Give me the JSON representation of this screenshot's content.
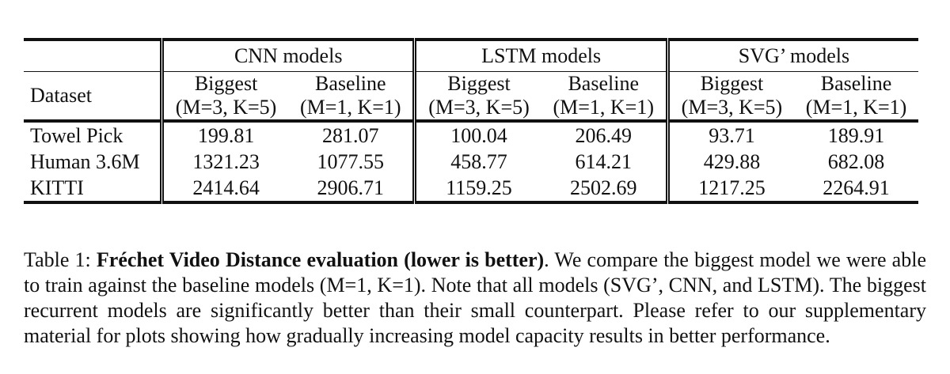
{
  "table": {
    "dataset_header": "Dataset",
    "groups": [
      "CNN models",
      "LSTM models",
      "SVG’ models"
    ],
    "subheaders": [
      {
        "name": "Biggest",
        "config": "(M=3, K=5)"
      },
      {
        "name": "Baseline",
        "config": "(M=1, K=1)"
      },
      {
        "name": "Biggest",
        "config": "(M=3, K=5)"
      },
      {
        "name": "Baseline",
        "config": "(M=1, K=1)"
      },
      {
        "name": "Biggest",
        "config": "(M=3, K=5)"
      },
      {
        "name": "Baseline",
        "config": "(M=1, K=1)"
      }
    ],
    "rows": [
      {
        "dataset": "Towel Pick",
        "values": [
          "199.81",
          "281.07",
          "100.04",
          "206.49",
          "93.71",
          "189.91"
        ]
      },
      {
        "dataset": "Human 3.6M",
        "values": [
          "1321.23",
          "1077.55",
          "458.77",
          "614.21",
          "429.88",
          "682.08"
        ]
      },
      {
        "dataset": "KITTI",
        "values": [
          "2414.64",
          "2906.71",
          "1159.25",
          "2502.69",
          "1217.25",
          "2264.91"
        ]
      }
    ]
  },
  "caption": {
    "label": "Table 1: ",
    "bold_title": "Fréchet Video Distance evaluation (lower is better)",
    "body": ". We compare the biggest model we were able to train against the baseline models (M=1, K=1). Note that all models (SVG’, CNN, and LSTM). The biggest recurrent models are significantly better than their small counterpart. Please refer to our supplementary material for plots showing how gradually increasing model capacity results in better performance."
  }
}
